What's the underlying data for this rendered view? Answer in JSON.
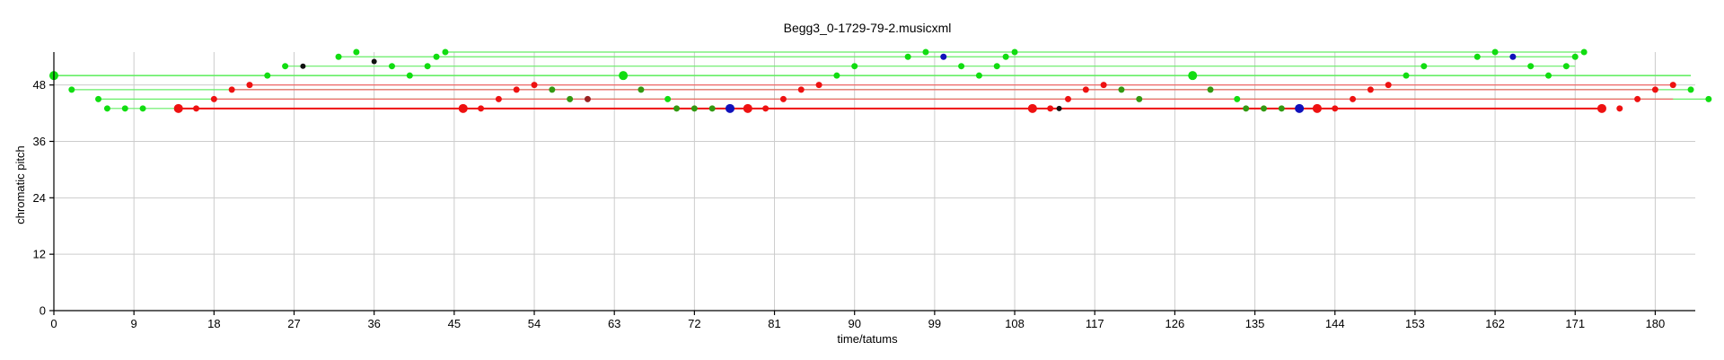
{
  "chart_data": {
    "type": "scatter",
    "title": "Begg3_0-1729-79-2.musicxml",
    "xlabel": "time/tatums",
    "ylabel": "chromatic pitch",
    "xlim": [
      0,
      184.5
    ],
    "ylim": [
      0,
      55
    ],
    "xticks": [
      0,
      9,
      18,
      27,
      36,
      45,
      54,
      63,
      72,
      81,
      90,
      99,
      108,
      117,
      126,
      135,
      144,
      153,
      162,
      171,
      180
    ],
    "yticks": [
      0,
      12,
      24,
      36,
      48
    ],
    "grid": true,
    "colors": {
      "green": "#11dd11",
      "red": "#ee1111",
      "blue": "#1111bb",
      "black": "#111111",
      "dark_green": "#339911",
      "dark_red": "#992222",
      "light_green_line": "#66ee66",
      "light_red_line": "#ee6666"
    },
    "notes": [
      {
        "x": 0,
        "y": 50,
        "c": "green",
        "s": 5
      },
      {
        "x": 2,
        "y": 47,
        "c": "green",
        "s": 3.5
      },
      {
        "x": 5,
        "y": 45,
        "c": "green",
        "s": 3.5
      },
      {
        "x": 6,
        "y": 43,
        "c": "green",
        "s": 3.5
      },
      {
        "x": 8,
        "y": 43,
        "c": "green",
        "s": 3.5
      },
      {
        "x": 10,
        "y": 43,
        "c": "green",
        "s": 3.5
      },
      {
        "x": 14,
        "y": 43,
        "c": "red",
        "s": 5
      },
      {
        "x": 16,
        "y": 43,
        "c": "red",
        "s": 3.5
      },
      {
        "x": 18,
        "y": 45,
        "c": "red",
        "s": 3.5
      },
      {
        "x": 20,
        "y": 47,
        "c": "red",
        "s": 3.5
      },
      {
        "x": 22,
        "y": 48,
        "c": "red",
        "s": 3.5
      },
      {
        "x": 24,
        "y": 50,
        "c": "green",
        "s": 3.5
      },
      {
        "x": 26,
        "y": 52,
        "c": "green",
        "s": 3.5
      },
      {
        "x": 28,
        "y": 52,
        "c": "black",
        "s": 3
      },
      {
        "x": 32,
        "y": 54,
        "c": "green",
        "s": 3.5
      },
      {
        "x": 34,
        "y": 55,
        "c": "green",
        "s": 3.5
      },
      {
        "x": 36,
        "y": 53,
        "c": "black",
        "s": 3
      },
      {
        "x": 38,
        "y": 52,
        "c": "green",
        "s": 3.5
      },
      {
        "x": 40,
        "y": 50,
        "c": "green",
        "s": 3.5
      },
      {
        "x": 42,
        "y": 52,
        "c": "green",
        "s": 3.5
      },
      {
        "x": 43,
        "y": 54,
        "c": "green",
        "s": 3.5
      },
      {
        "x": 44,
        "y": 55,
        "c": "green",
        "s": 3.5
      },
      {
        "x": 46,
        "y": 43,
        "c": "red",
        "s": 5
      },
      {
        "x": 48,
        "y": 43,
        "c": "red",
        "s": 3.5
      },
      {
        "x": 50,
        "y": 45,
        "c": "red",
        "s": 3.5
      },
      {
        "x": 52,
        "y": 47,
        "c": "red",
        "s": 3.5
      },
      {
        "x": 54,
        "y": 48,
        "c": "red",
        "s": 3.5
      },
      {
        "x": 56,
        "y": 47,
        "c": "dark_green",
        "s": 3.5
      },
      {
        "x": 58,
        "y": 45,
        "c": "dark_green",
        "s": 3.5
      },
      {
        "x": 60,
        "y": 45,
        "c": "dark_red",
        "s": 3.5
      },
      {
        "x": 64,
        "y": 50,
        "c": "green",
        "s": 5
      },
      {
        "x": 66,
        "y": 47,
        "c": "dark_green",
        "s": 3.5
      },
      {
        "x": 69,
        "y": 45,
        "c": "green",
        "s": 3.5
      },
      {
        "x": 70,
        "y": 43,
        "c": "dark_green",
        "s": 3.5
      },
      {
        "x": 72,
        "y": 43,
        "c": "dark_green",
        "s": 3.5
      },
      {
        "x": 74,
        "y": 43,
        "c": "dark_green",
        "s": 3.5
      },
      {
        "x": 76,
        "y": 43,
        "c": "blue",
        "s": 5
      },
      {
        "x": 78,
        "y": 43,
        "c": "red",
        "s": 5
      },
      {
        "x": 80,
        "y": 43,
        "c": "red",
        "s": 3.5
      },
      {
        "x": 82,
        "y": 45,
        "c": "red",
        "s": 3.5
      },
      {
        "x": 84,
        "y": 47,
        "c": "red",
        "s": 3.5
      },
      {
        "x": 86,
        "y": 48,
        "c": "red",
        "s": 3.5
      },
      {
        "x": 88,
        "y": 50,
        "c": "green",
        "s": 3.5
      },
      {
        "x": 90,
        "y": 52,
        "c": "green",
        "s": 3.5
      },
      {
        "x": 96,
        "y": 54,
        "c": "green",
        "s": 3.5
      },
      {
        "x": 98,
        "y": 55,
        "c": "green",
        "s": 3.5
      },
      {
        "x": 100,
        "y": 54,
        "c": "blue",
        "s": 3.5
      },
      {
        "x": 102,
        "y": 52,
        "c": "green",
        "s": 3.5
      },
      {
        "x": 104,
        "y": 50,
        "c": "green",
        "s": 3.5
      },
      {
        "x": 106,
        "y": 52,
        "c": "green",
        "s": 3.5
      },
      {
        "x": 107,
        "y": 54,
        "c": "green",
        "s": 3.5
      },
      {
        "x": 108,
        "y": 55,
        "c": "green",
        "s": 3.5
      },
      {
        "x": 110,
        "y": 43,
        "c": "red",
        "s": 5
      },
      {
        "x": 112,
        "y": 43,
        "c": "red",
        "s": 3.5
      },
      {
        "x": 113,
        "y": 43,
        "c": "black",
        "s": 3
      },
      {
        "x": 114,
        "y": 45,
        "c": "red",
        "s": 3.5
      },
      {
        "x": 116,
        "y": 47,
        "c": "red",
        "s": 3.5
      },
      {
        "x": 118,
        "y": 48,
        "c": "red",
        "s": 3.5
      },
      {
        "x": 120,
        "y": 47,
        "c": "dark_green",
        "s": 3.5
      },
      {
        "x": 122,
        "y": 45,
        "c": "dark_green",
        "s": 3.5
      },
      {
        "x": 128,
        "y": 50,
        "c": "green",
        "s": 5
      },
      {
        "x": 130,
        "y": 47,
        "c": "dark_green",
        "s": 3.5
      },
      {
        "x": 133,
        "y": 45,
        "c": "green",
        "s": 3.5
      },
      {
        "x": 134,
        "y": 43,
        "c": "dark_green",
        "s": 3.5
      },
      {
        "x": 136,
        "y": 43,
        "c": "dark_green",
        "s": 3.5
      },
      {
        "x": 138,
        "y": 43,
        "c": "dark_green",
        "s": 3.5
      },
      {
        "x": 140,
        "y": 43,
        "c": "blue",
        "s": 5
      },
      {
        "x": 142,
        "y": 43,
        "c": "red",
        "s": 5
      },
      {
        "x": 144,
        "y": 43,
        "c": "red",
        "s": 3.5
      },
      {
        "x": 146,
        "y": 45,
        "c": "red",
        "s": 3.5
      },
      {
        "x": 148,
        "y": 47,
        "c": "red",
        "s": 3.5
      },
      {
        "x": 150,
        "y": 48,
        "c": "red",
        "s": 3.5
      },
      {
        "x": 152,
        "y": 50,
        "c": "green",
        "s": 3.5
      },
      {
        "x": 154,
        "y": 52,
        "c": "green",
        "s": 3.5
      },
      {
        "x": 160,
        "y": 54,
        "c": "green",
        "s": 3.5
      },
      {
        "x": 162,
        "y": 55,
        "c": "green",
        "s": 3.5
      },
      {
        "x": 164,
        "y": 54,
        "c": "blue",
        "s": 3.5
      },
      {
        "x": 166,
        "y": 52,
        "c": "green",
        "s": 3.5
      },
      {
        "x": 168,
        "y": 50,
        "c": "green",
        "s": 3.5
      },
      {
        "x": 170,
        "y": 52,
        "c": "green",
        "s": 3.5
      },
      {
        "x": 171,
        "y": 54,
        "c": "green",
        "s": 3.5
      },
      {
        "x": 172,
        "y": 55,
        "c": "green",
        "s": 3.5
      },
      {
        "x": 174,
        "y": 43,
        "c": "red",
        "s": 5
      },
      {
        "x": 176,
        "y": 43,
        "c": "red",
        "s": 3.5
      },
      {
        "x": 178,
        "y": 45,
        "c": "red",
        "s": 3.5
      },
      {
        "x": 180,
        "y": 47,
        "c": "red",
        "s": 3.5
      },
      {
        "x": 182,
        "y": 48,
        "c": "red",
        "s": 3.5
      },
      {
        "x": 184,
        "y": 47,
        "c": "green",
        "s": 3.5
      },
      {
        "x": 186,
        "y": 45,
        "c": "green",
        "s": 3.5
      }
    ],
    "spans": [
      {
        "x0": 0,
        "x1": 184,
        "y": 50,
        "c": "light_green_line",
        "w": 1.6
      },
      {
        "x0": 2,
        "x1": 184,
        "y": 47,
        "c": "light_green_line",
        "w": 1.2
      },
      {
        "x0": 5,
        "x1": 186,
        "y": 45,
        "c": "light_green_line",
        "w": 1.2
      },
      {
        "x0": 6,
        "x1": 14,
        "y": 43,
        "c": "light_green_line",
        "w": 1.2
      },
      {
        "x0": 14,
        "x1": 174,
        "y": 43,
        "c": "red",
        "w": 2
      },
      {
        "x0": 18,
        "x1": 182,
        "y": 45,
        "c": "light_red_line",
        "w": 1.2
      },
      {
        "x0": 20,
        "x1": 180,
        "y": 47,
        "c": "light_red_line",
        "w": 1.2
      },
      {
        "x0": 22,
        "x1": 182,
        "y": 48,
        "c": "light_red_line",
        "w": 1.2
      },
      {
        "x0": 26,
        "x1": 171,
        "y": 52,
        "c": "light_green_line",
        "w": 1.2
      },
      {
        "x0": 32,
        "x1": 171,
        "y": 54,
        "c": "light_green_line",
        "w": 1.2
      },
      {
        "x0": 44,
        "x1": 172,
        "y": 55,
        "c": "light_green_line",
        "w": 1.2
      }
    ]
  }
}
